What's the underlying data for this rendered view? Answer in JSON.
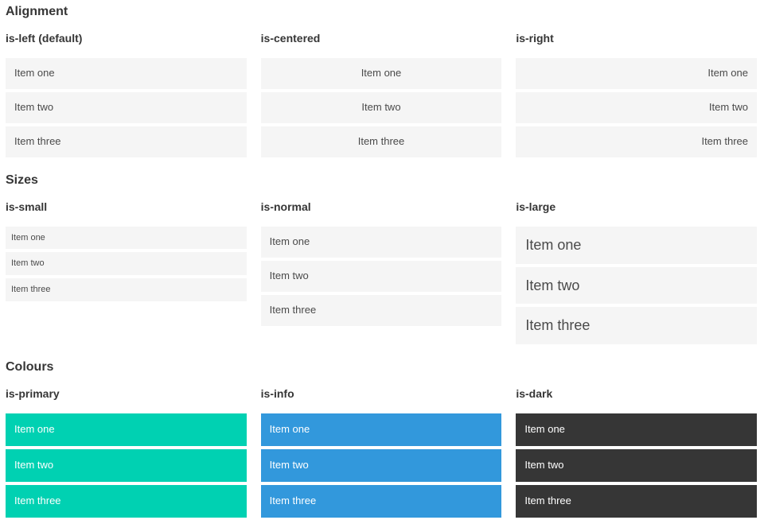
{
  "colors": {
    "primary": "#00d1b2",
    "info": "#3298dc",
    "dark": "#363636",
    "item_background": "#f5f5f5",
    "item_text": "#4a4a4a",
    "heading_text": "#363636",
    "colored_item_text": "#ffffff",
    "page_background": "#ffffff"
  },
  "sections": [
    {
      "title": "Alignment",
      "columns": [
        {
          "subtitle": "is-left (default)",
          "variant": "is-left",
          "items": [
            "Item one",
            "Item two",
            "Item three"
          ]
        },
        {
          "subtitle": "is-centered",
          "variant": "is-centered",
          "items": [
            "Item one",
            "Item two",
            "Item three"
          ]
        },
        {
          "subtitle": "is-right",
          "variant": "is-right",
          "items": [
            "Item one",
            "Item two",
            "Item three"
          ]
        }
      ]
    },
    {
      "title": "Sizes",
      "columns": [
        {
          "subtitle": "is-small",
          "variant": "is-small",
          "items": [
            "Item one",
            "Item two",
            "Item three"
          ]
        },
        {
          "subtitle": "is-normal",
          "variant": "is-normal",
          "items": [
            "Item one",
            "Item two",
            "Item three"
          ]
        },
        {
          "subtitle": "is-large",
          "variant": "is-large",
          "items": [
            "Item one",
            "Item two",
            "Item three"
          ]
        }
      ]
    },
    {
      "title": "Colours",
      "columns": [
        {
          "subtitle": "is-primary",
          "variant": "is-primary",
          "items": [
            "Item one",
            "Item two",
            "Item three"
          ]
        },
        {
          "subtitle": "is-info",
          "variant": "is-info",
          "items": [
            "Item one",
            "Item two",
            "Item three"
          ]
        },
        {
          "subtitle": "is-dark",
          "variant": "is-dark",
          "items": [
            "Item one",
            "Item two",
            "Item three"
          ]
        }
      ]
    }
  ]
}
